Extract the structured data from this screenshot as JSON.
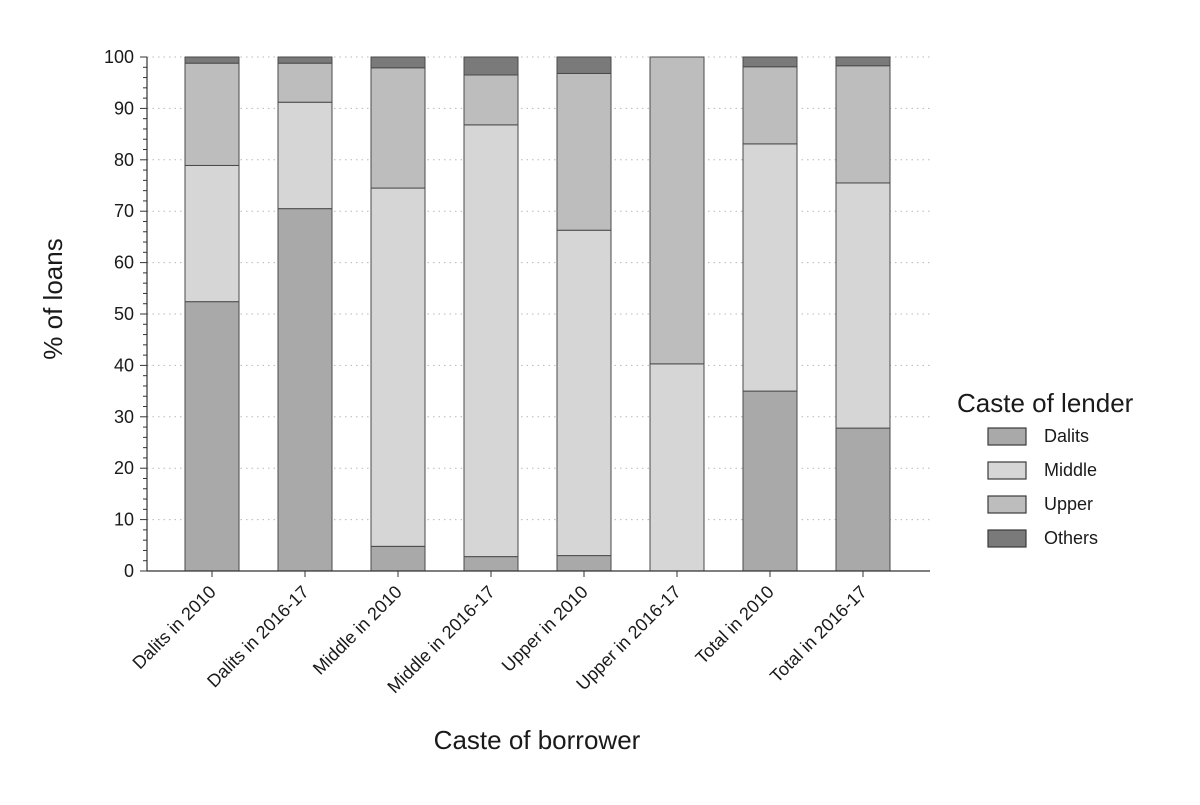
{
  "chart_data": {
    "type": "bar",
    "stacked": true,
    "title": "",
    "xlabel": "Caste of borrower",
    "ylabel": "% of loans",
    "ylim": [
      0,
      100
    ],
    "yticks": [
      0,
      10,
      20,
      30,
      40,
      50,
      60,
      70,
      80,
      90,
      100
    ],
    "grid": "horizontal dotted",
    "legend": {
      "title": "Caste of lender",
      "placement": "right"
    },
    "categories": [
      "Dalits in 2010",
      "Dalits in 2016-17",
      "Middle in 2010",
      "Middle in 2016-17",
      "Upper in 2010",
      "Upper in 2016-17",
      "Total in 2010",
      "Total in 2016-17"
    ],
    "series": [
      {
        "name": "Dalits",
        "color": "#a9a9a9",
        "values": [
          52.4,
          70.5,
          4.8,
          2.8,
          3.0,
          0.0,
          35.0,
          27.8
        ]
      },
      {
        "name": "Middle",
        "color": "#d6d6d6",
        "values": [
          26.5,
          20.7,
          69.7,
          84.0,
          63.3,
          40.3,
          48.1,
          47.7
        ]
      },
      {
        "name": "Upper",
        "color": "#bdbdbd",
        "values": [
          19.9,
          7.6,
          23.4,
          9.7,
          30.5,
          59.7,
          15.0,
          22.8
        ]
      },
      {
        "name": "Others",
        "color": "#7a7a7a",
        "values": [
          1.2,
          1.2,
          2.1,
          3.5,
          3.2,
          0.0,
          1.9,
          1.7
        ]
      }
    ]
  }
}
